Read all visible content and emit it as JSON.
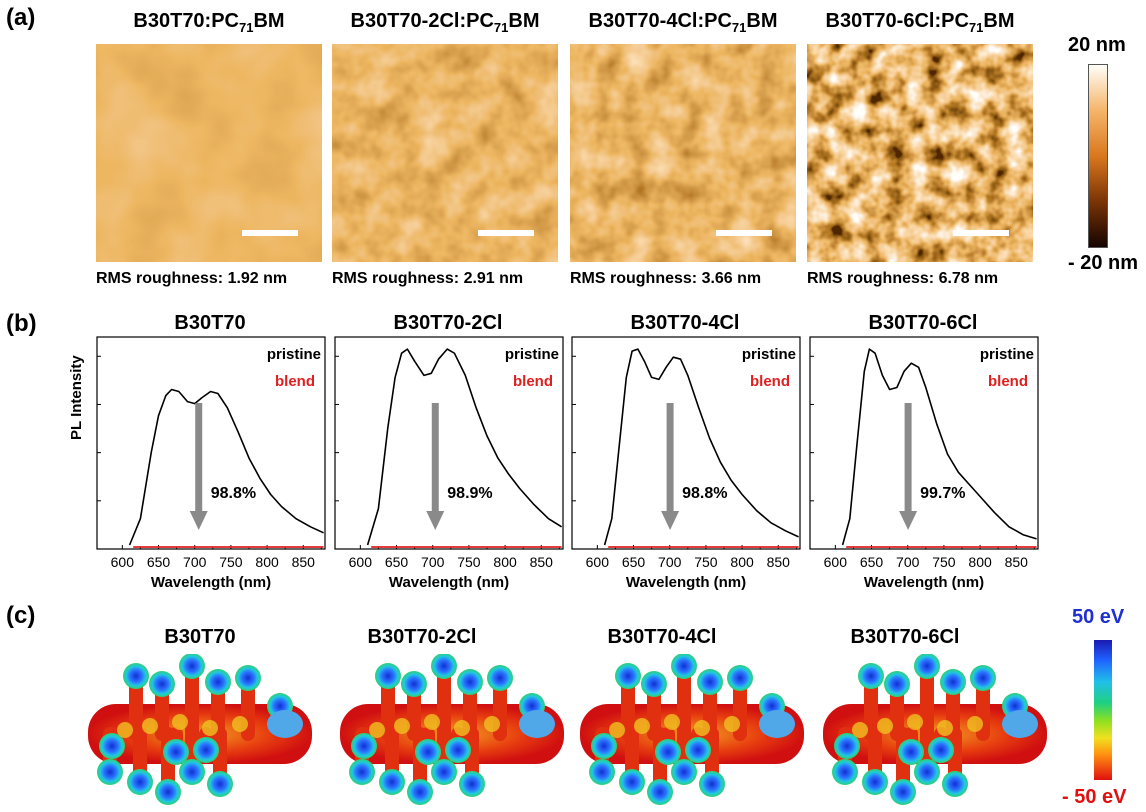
{
  "panel_labels": {
    "a": "(a)",
    "b": "(b)",
    "c": "(c)"
  },
  "afm": {
    "samples": [
      {
        "title_main": "B30T70:PC",
        "title_sub": "71",
        "title_end": "BM",
        "rms": "RMS roughness: 1.92 nm"
      },
      {
        "title_main": "B30T70-2Cl:PC",
        "title_sub": "71",
        "title_end": "BM",
        "rms": "RMS roughness: 2.91 nm"
      },
      {
        "title_main": "B30T70-4Cl:PC",
        "title_sub": "71",
        "title_end": "BM",
        "rms": "RMS roughness: 3.66 nm"
      },
      {
        "title_main": "B30T70-6Cl:PC",
        "title_sub": "71",
        "title_end": "BM",
        "rms": "RMS roughness: 6.78 nm"
      }
    ],
    "colorbar": {
      "top": "20 nm",
      "bottom": "- 20 nm",
      "colors": [
        "#fffef8",
        "#f5b56a",
        "#d9781e",
        "#7a3406",
        "#150400"
      ]
    }
  },
  "pl": {
    "ylabel": "PL Intensity",
    "xlabel": "Wavelength (nm)",
    "legend_pristine": "pristine",
    "legend_blend": "blend",
    "pristine_color": "#000000",
    "blend_color": "#e02020",
    "arrow_color": "#8a8a8a"
  },
  "chart_data": [
    {
      "type": "line",
      "title": "B30T70",
      "x_ticks": [
        "600",
        "650",
        "700",
        "750",
        "800",
        "850"
      ],
      "xlim": [
        565,
        880
      ],
      "ylim": [
        0,
        1.05
      ],
      "series": [
        {
          "name": "pristine",
          "x": [
            610,
            625,
            640,
            650,
            660,
            668,
            678,
            690,
            700,
            710,
            722,
            732,
            745,
            760,
            775,
            790,
            805,
            820,
            840,
            860,
            878
          ],
          "y": [
            0.02,
            0.15,
            0.48,
            0.66,
            0.76,
            0.79,
            0.78,
            0.73,
            0.72,
            0.75,
            0.78,
            0.77,
            0.7,
            0.58,
            0.45,
            0.35,
            0.27,
            0.21,
            0.15,
            0.11,
            0.08
          ]
        },
        {
          "name": "blend",
          "x": [
            615,
            700,
            878
          ],
          "y": [
            0.01,
            0.01,
            0.01
          ]
        }
      ],
      "annotation": "98.8%"
    },
    {
      "type": "line",
      "title": "B30T70-2Cl",
      "x_ticks": [
        "600",
        "650",
        "700",
        "750",
        "800",
        "850"
      ],
      "xlim": [
        565,
        880
      ],
      "ylim": [
        0,
        1.05
      ],
      "series": [
        {
          "name": "pristine",
          "x": [
            610,
            625,
            638,
            648,
            657,
            665,
            675,
            688,
            698,
            708,
            720,
            730,
            745,
            760,
            775,
            790,
            805,
            820,
            840,
            860,
            878
          ],
          "y": [
            0.02,
            0.2,
            0.6,
            0.85,
            0.97,
            0.99,
            0.93,
            0.86,
            0.87,
            0.94,
            0.99,
            0.97,
            0.86,
            0.7,
            0.56,
            0.45,
            0.37,
            0.3,
            0.22,
            0.15,
            0.11
          ]
        },
        {
          "name": "blend",
          "x": [
            615,
            700,
            878
          ],
          "y": [
            0.01,
            0.01,
            0.01
          ]
        }
      ],
      "annotation": "98.9%"
    },
    {
      "type": "line",
      "title": "B30T70-4Cl",
      "x_ticks": [
        "600",
        "650",
        "700",
        "750",
        "800",
        "850"
      ],
      "xlim": [
        565,
        880
      ],
      "ylim": [
        0,
        1.05
      ],
      "series": [
        {
          "name": "pristine",
          "x": [
            610,
            620,
            630,
            640,
            648,
            656,
            665,
            675,
            685,
            695,
            705,
            715,
            725,
            740,
            755,
            770,
            785,
            800,
            820,
            840,
            860,
            878
          ],
          "y": [
            0.02,
            0.15,
            0.5,
            0.85,
            0.98,
            0.99,
            0.93,
            0.85,
            0.84,
            0.9,
            0.95,
            0.94,
            0.86,
            0.7,
            0.55,
            0.43,
            0.34,
            0.27,
            0.19,
            0.13,
            0.09,
            0.06
          ]
        },
        {
          "name": "blend",
          "x": [
            615,
            700,
            878
          ],
          "y": [
            0.01,
            0.01,
            0.01
          ]
        }
      ],
      "annotation": "98.8%"
    },
    {
      "type": "line",
      "title": "B30T70-6Cl",
      "x_ticks": [
        "600",
        "650",
        "700",
        "750",
        "800",
        "850"
      ],
      "xlim": [
        565,
        880
      ],
      "ylim": [
        0,
        1.05
      ],
      "series": [
        {
          "name": "pristine",
          "x": [
            610,
            620,
            630,
            640,
            647,
            655,
            665,
            675,
            685,
            695,
            705,
            715,
            725,
            740,
            755,
            770,
            785,
            800,
            820,
            840,
            860,
            878
          ],
          "y": [
            0.02,
            0.15,
            0.52,
            0.88,
            0.99,
            0.97,
            0.86,
            0.79,
            0.8,
            0.88,
            0.92,
            0.9,
            0.8,
            0.62,
            0.47,
            0.38,
            0.32,
            0.26,
            0.18,
            0.11,
            0.07,
            0.05
          ]
        },
        {
          "name": "blend",
          "x": [
            615,
            700,
            878
          ],
          "y": [
            0.01,
            0.01,
            0.01
          ]
        }
      ],
      "annotation": "99.7%"
    }
  ],
  "esp": {
    "molecules": [
      "B30T70",
      "B30T70-2Cl",
      "B30T70-4Cl",
      "B30T70-6Cl"
    ],
    "colorbar": {
      "top": "50 eV",
      "bottom": "- 50 eV",
      "top_color": "#1f2fd0",
      "bottom_color": "#e01010"
    }
  }
}
